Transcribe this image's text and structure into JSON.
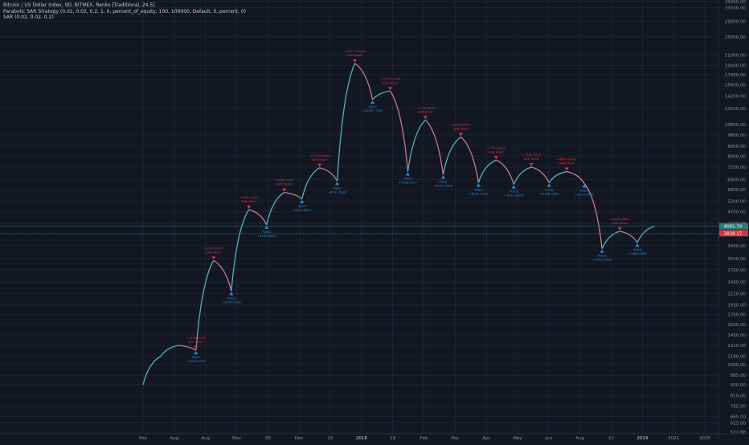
{
  "header": {
    "symbol_line": "Bitcoin / US Dollar Index, 9D, BITMEX, Renko [Traditional, 24.5]",
    "strategy_line": "Parabolic SAR Strategy (0.02, 0.02, 0.2, 1, 0, percent_of_equity, 100, 100000, Default, 0, percent, 0)",
    "indicator_line": "SAR (0.02, 0.02, 0.2)"
  },
  "colors": {
    "background": "#131722",
    "grid": "#232a3a",
    "up_segment": "#4fb3bf",
    "down_segment": "#c47a97",
    "entry_short": "#e0333a",
    "entry_long": "#2d8fd9",
    "price_label": "#2b7a78",
    "price_label_alt": "#c93a49"
  },
  "chart_data": {
    "type": "line",
    "title": "",
    "y_scale": "log",
    "ylim": [
      571.88,
      35000
    ],
    "y_ticks": [
      "35000.00",
      "33000.00",
      "29000.00",
      "25000.00",
      "21000.00",
      "19000.00",
      "17400.00",
      "15800.00",
      "14200.00",
      "12600.00",
      "10800.00",
      "9800.00",
      "8800.00",
      "8000.00",
      "7200.00",
      "6400.00",
      "5800.00",
      "5200.00",
      "4700.00",
      "4200.00",
      "3800.00",
      "3400.00",
      "3000.00",
      "2700.00",
      "2400.00",
      "2150.00",
      "1930.00",
      "1760.00",
      "1600.00",
      "1450.00",
      "1310.00",
      "1180.00",
      "1090.00",
      "985.00",
      "900.00",
      "810.00",
      "735.00",
      "665.00",
      "625.00",
      "571.88"
    ],
    "x_ticks": [
      "Feb",
      "Aug",
      "Aug",
      "Nov",
      "30",
      "Dec",
      "19",
      "2018",
      "19",
      "Feb",
      "Mar",
      "Apr",
      "May",
      "Jun",
      "Aug",
      "12",
      "2019",
      "2021",
      "2025"
    ],
    "series": [
      {
        "type": "renko_path",
        "points": [
          {
            "x": "Feb 1",
            "y": 900
          },
          {
            "x": "Feb 2",
            "y": 1180
          },
          {
            "x": "Feb 3",
            "y": 1310
          },
          {
            "x": "Feb 4",
            "y": 1250
          },
          {
            "x": "Feb 5",
            "y": 2950
          },
          {
            "x": "Feb 6",
            "y": 2200
          },
          {
            "x": "Aug 1",
            "y": 4800
          },
          {
            "x": "Aug 2",
            "y": 4150
          },
          {
            "x": "Aug 3",
            "y": 5650
          },
          {
            "x": "Aug 4",
            "y": 5300
          },
          {
            "x": "Nov 1",
            "y": 7150
          },
          {
            "x": "Nov 2",
            "y": 6300
          },
          {
            "x": "Dec 19",
            "y": 19400
          },
          {
            "x": "2018 1",
            "y": 13700
          },
          {
            "x": "2018 2",
            "y": 14900
          },
          {
            "x": "Feb 1",
            "y": 6900
          },
          {
            "x": "Mar 1",
            "y": 11300
          },
          {
            "x": "Apr 1",
            "y": 6700
          },
          {
            "x": "May 1",
            "y": 9600
          },
          {
            "x": "Jun 1",
            "y": 6200
          },
          {
            "x": "Jun 2",
            "y": 7700
          },
          {
            "x": "Aug 1",
            "y": 6100
          },
          {
            "x": "Aug 2",
            "y": 7200
          },
          {
            "x": "Aug 3",
            "y": 6200
          },
          {
            "x": "12 1",
            "y": 6900
          },
          {
            "x": "12 2",
            "y": 6150
          },
          {
            "x": "2019 1",
            "y": 3300
          },
          {
            "x": "2019 2",
            "y": 3900
          },
          {
            "x": "2019 3",
            "y": 3500
          },
          {
            "x": "2019 4",
            "y": 4100
          }
        ]
      }
    ],
    "trade_markers": [
      {
        "type": "short",
        "label": "SAR Short",
        "value": "+1190.0000",
        "point_index": 3
      },
      {
        "type": "long",
        "label": "PolLS",
        "value": "+1260.0000",
        "point_index": 3
      },
      {
        "type": "short",
        "label": "SAR Short",
        "value": "+2933.0000",
        "point_index": 4
      },
      {
        "type": "long",
        "label": "PolLS",
        "value": "+2270.0000",
        "point_index": 5
      },
      {
        "type": "short",
        "label": "SAR Short",
        "value": "+4600.7550",
        "point_index": 6
      },
      {
        "type": "long",
        "label": "PolLS",
        "value": "+4163.6637",
        "point_index": 7
      },
      {
        "type": "short",
        "label": "SAR Short",
        "value": "+5550.2500",
        "point_index": 8
      },
      {
        "type": "long",
        "label": "PolLS",
        "value": "+5222.4613",
        "point_index": 9
      },
      {
        "type": "short",
        "label": "SAR Short",
        "value": "+7215.5000",
        "point_index": 10
      },
      {
        "type": "long",
        "label": "PolLS",
        "value": "+6291.9637",
        "point_index": 11
      },
      {
        "type": "short",
        "label": "SAR Short",
        "value": "+19771.8000",
        "point_index": 12
      },
      {
        "type": "long",
        "label": "PolLS",
        "value": "+13387.7191",
        "point_index": 13
      },
      {
        "type": "short",
        "label": "SAR Short",
        "value": "+15077.0000",
        "point_index": 14
      },
      {
        "type": "long",
        "label": "PolLS",
        "value": "+7028.0417",
        "point_index": 15
      },
      {
        "type": "short",
        "label": "SAR Short",
        "value": "+11596.0000",
        "point_index": 16
      },
      {
        "type": "long",
        "label": "PolLS",
        "value": "+6700.0000",
        "point_index": 17
      },
      {
        "type": "short",
        "label": "SAR Short",
        "value": "+9940.0000",
        "point_index": 18
      },
      {
        "type": "long",
        "label": "PolLS",
        "value": "+6180.0000",
        "point_index": 19
      },
      {
        "type": "short",
        "label": "SAR Short",
        "value": "+7781.0000",
        "point_index": 20
      },
      {
        "type": "long",
        "label": "PolLS",
        "value": "+6114.0000",
        "point_index": 21
      },
      {
        "type": "short",
        "label": "SAR Short",
        "value": "+7380.0000",
        "point_index": 22
      },
      {
        "type": "long",
        "label": "PolLS",
        "value": "+6180.0000",
        "point_index": 23
      },
      {
        "type": "short",
        "label": "SAR Short",
        "value": "+6950.0000",
        "point_index": 24
      },
      {
        "type": "long",
        "label": "PolLS",
        "value": "+6120.0000",
        "point_index": 25
      },
      {
        "type": "long",
        "label": "PolLS",
        "value": "+3312.0000",
        "point_index": 26
      },
      {
        "type": "short",
        "label": "SAR Short",
        "value": "+4020.0000",
        "point_index": 27
      },
      {
        "type": "long",
        "label": "PolLS",
        "value": "+3480.0000",
        "point_index": 28
      }
    ],
    "price_labels": [
      {
        "value": "4091.74",
        "color_key": "price_label"
      },
      {
        "value": "3828.17",
        "color_key": "price_label_alt"
      }
    ],
    "grid": true,
    "legend": "top-left"
  }
}
